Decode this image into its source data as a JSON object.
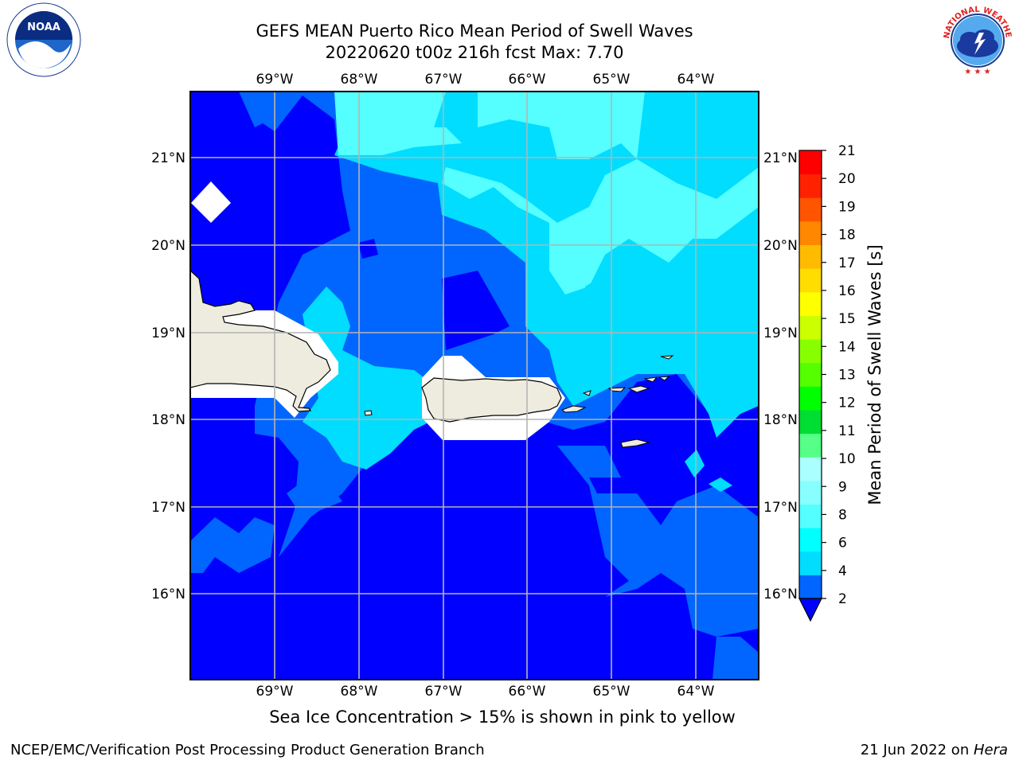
{
  "header": {
    "title_line1": "GEFS MEAN Puerto Rico Mean Period of Swell Waves",
    "title_line2": "20220620 t00z 216h fcst   Max: 7.70"
  },
  "logos": {
    "left": "noara-logo",
    "left_text": "NOAA",
    "right": "national-weather-service-logo",
    "right_text": "NATIONAL WEATHER SERVICE"
  },
  "map": {
    "lon_labels": [
      "69°W",
      "68°W",
      "67°W",
      "66°W",
      "65°W",
      "64°W"
    ],
    "lat_labels": [
      "21°N",
      "20°N",
      "19°N",
      "18°N",
      "17°N",
      "16°N"
    ],
    "land_color": "#eeecdf",
    "ocean_low_color": "#0000ff"
  },
  "colorbar": {
    "label": "Mean Period of Swell Waves [s]",
    "ticks": [
      "2",
      "4",
      "6",
      "8",
      "9",
      "10",
      "11",
      "12",
      "13",
      "14",
      "15",
      "16",
      "17",
      "18",
      "19",
      "20",
      "21"
    ],
    "colors": [
      "#0066ff",
      "#00ddff",
      "#00ffff",
      "#55ffff",
      "#88ffff",
      "#aaffff",
      "#55ff88",
      "#00dd33",
      "#00ff00",
      "#55ff00",
      "#88ff00",
      "#ccff00",
      "#ffff00",
      "#ffdd00",
      "#ffbb00",
      "#ff8800",
      "#ff5500",
      "#ff2200",
      "#ff0000"
    ],
    "under_color": "#0000ff"
  },
  "note": "Sea Ice Concentration > 15% is shown in pink to yellow",
  "footer": {
    "left": "NCEP/EMC/Verification Post Processing Product Generation Branch",
    "right_date": "21 Jun 2022 on ",
    "right_host": "Hera"
  }
}
